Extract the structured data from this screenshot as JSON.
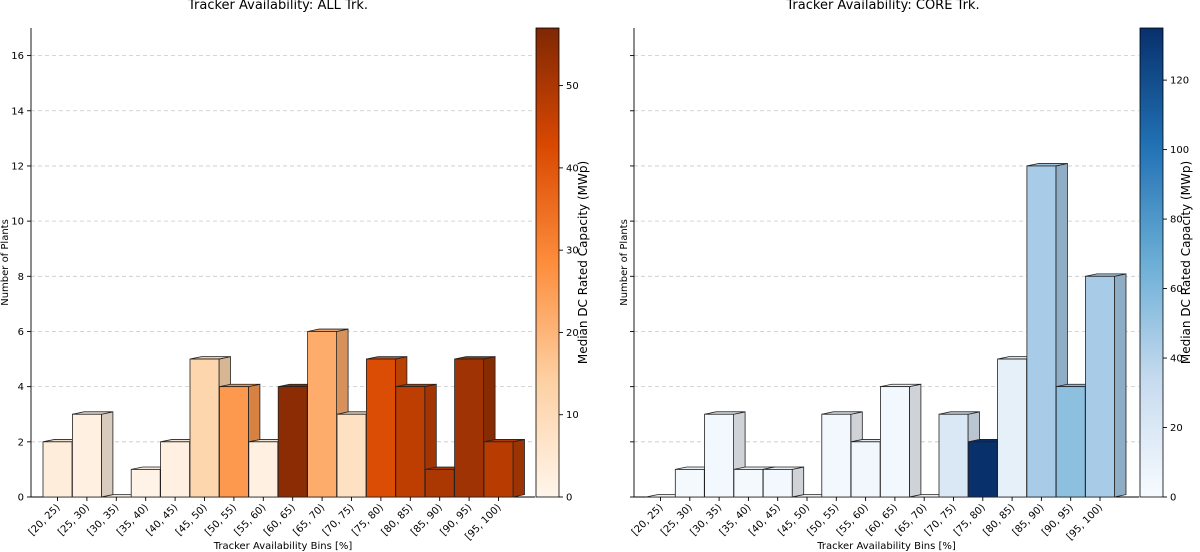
{
  "chart_data": [
    {
      "type": "bar",
      "title": "Tracker Availability: ALL Trk.",
      "xlabel": "Tracker Availability Bins [%]",
      "ylabel": "Number of Plants",
      "ylim": [
        0,
        17
      ],
      "yticks": [
        0,
        2,
        4,
        6,
        8,
        10,
        12,
        14,
        16
      ],
      "categories": [
        "[20, 25)",
        "[25, 30)",
        "[30, 35)",
        "[35, 40)",
        "[40, 45)",
        "[45, 50)",
        "[50, 55)",
        "[55, 60)",
        "[60, 65)",
        "[65, 70)",
        "[70, 75)",
        "[75, 80)",
        "[80, 85)",
        "[85, 90)",
        "[90, 95)",
        "[95, 100)"
      ],
      "values": [
        2,
        3,
        0,
        1,
        2,
        5,
        4,
        2,
        4,
        6,
        3,
        5,
        4,
        1,
        5,
        2
      ],
      "median_capacity_mwp": [
        3,
        2,
        0,
        1,
        2,
        12,
        26,
        2,
        55,
        22,
        8,
        42,
        47,
        50,
        52,
        48
      ],
      "colorbar": {
        "label": "Median DC Rated Capacity (MWp)",
        "range": [
          0,
          57
        ],
        "ticks": [
          0,
          10,
          20,
          30,
          40,
          50
        ],
        "colormap": "Oranges",
        "stops": [
          "#fff5eb",
          "#fdd0a2",
          "#fd8d3c",
          "#d94801",
          "#7f2704"
        ]
      },
      "grid": true
    },
    {
      "type": "bar",
      "title": "Tracker Availability: CORE Trk.",
      "xlabel": "Tracker Availability Bins [%]",
      "ylabel": "Number of Plants",
      "ylim": [
        0,
        17
      ],
      "yticks": [
        0,
        2,
        4,
        6,
        8,
        10,
        12,
        14,
        16
      ],
      "categories": [
        "[20, 25)",
        "[25, 30)",
        "[30, 35)",
        "[35, 40)",
        "[40, 45)",
        "[45, 50)",
        "[50, 55)",
        "[55, 60)",
        "[60, 65)",
        "[65, 70)",
        "[70, 75)",
        "[75, 80)",
        "[80, 85)",
        "[85, 90)",
        "[90, 95)",
        "[95, 100)"
      ],
      "values": [
        0,
        1,
        3,
        1,
        1,
        0,
        3,
        2,
        4,
        0,
        3,
        2,
        5,
        12,
        4,
        8
      ],
      "median_capacity_mwp": [
        0,
        2,
        3,
        2,
        3,
        0,
        3,
        4,
        3,
        0,
        20,
        135,
        12,
        45,
        55,
        45
      ],
      "colorbar": {
        "label": "Median DC Rated Capacity (MWp)",
        "range": [
          0,
          135
        ],
        "ticks": [
          0,
          20,
          40,
          60,
          80,
          100,
          120
        ],
        "colormap": "Blues",
        "stops": [
          "#f7fbff",
          "#c6dbef",
          "#6baed6",
          "#2171b5",
          "#08306b"
        ]
      },
      "grid": true
    }
  ]
}
